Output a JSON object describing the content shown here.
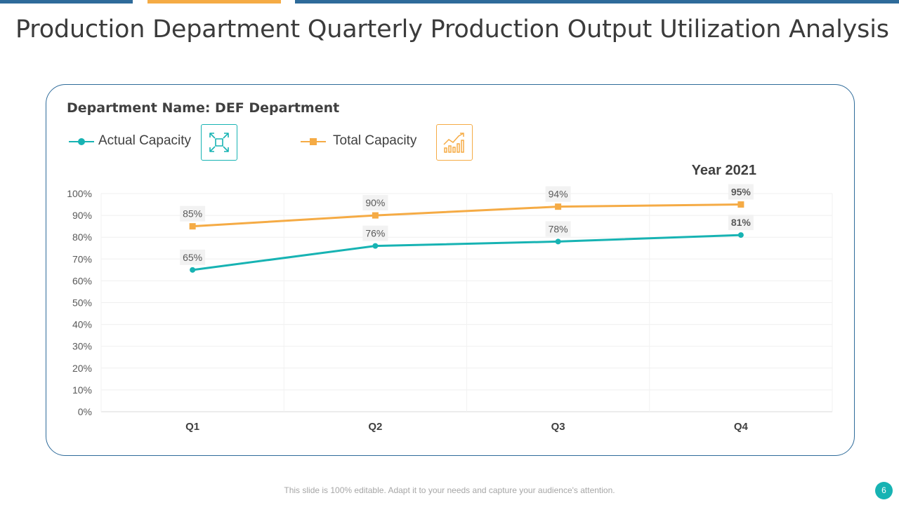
{
  "slide": {
    "title": "Production Department Quarterly Production Output Utilization Analysis",
    "department_label": "Department Name: DEF Department",
    "year_label": "Year 2021",
    "footer": "This slide is 100% editable. Adapt it to your needs and capture your audience's attention.",
    "page_number": "6"
  },
  "legend": {
    "actual": "Actual Capacity",
    "total": "Total Capacity",
    "actual_icon": "expand-arrows-icon",
    "total_icon": "growth-chart-icon"
  },
  "colors": {
    "actual": "#17b3b3",
    "total": "#f5ab45",
    "brand_blue": "#2e6b9a"
  },
  "chart_data": {
    "type": "line",
    "categories": [
      "Q1",
      "Q2",
      "Q3",
      "Q4"
    ],
    "series": [
      {
        "name": "Actual Capacity",
        "values": [
          65,
          76,
          78,
          81
        ],
        "labels": [
          "65%",
          "76%",
          "78%",
          "81%"
        ]
      },
      {
        "name": "Total Capacity",
        "values": [
          85,
          90,
          94,
          95
        ],
        "labels": [
          "85%",
          "90%",
          "94%",
          "95%"
        ]
      }
    ],
    "y_ticks": [
      "0%",
      "10%",
      "20%",
      "30%",
      "40%",
      "50%",
      "60%",
      "70%",
      "80%",
      "90%",
      "100%"
    ],
    "ylim": [
      0,
      100
    ],
    "grid": true,
    "legend_position": "top-left",
    "title": "Department Name: DEF Department"
  }
}
